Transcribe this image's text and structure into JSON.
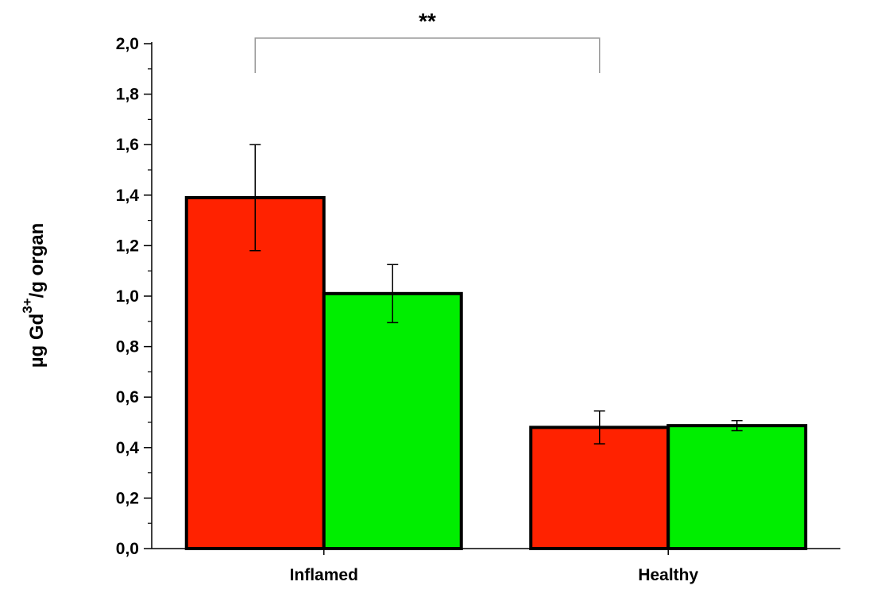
{
  "chart_data": {
    "type": "bar",
    "categories": [
      "Inflamed",
      "Healthy"
    ],
    "series": [
      {
        "color": "#ff2200",
        "values": [
          1.39,
          0.48
        ],
        "errors": [
          0.21,
          0.065
        ]
      },
      {
        "color": "#00ee00",
        "values": [
          1.01,
          0.487
        ],
        "errors": [
          0.115,
          0.02
        ]
      }
    ],
    "ylabel": {
      "prefix": "µg Gd",
      "superscript": "3+",
      "suffix": "/g organ"
    },
    "ylim": [
      0,
      2.0
    ],
    "yticks": [
      "0,0",
      "0,2",
      "0,4",
      "0,6",
      "0,8",
      "1,0",
      "1,2",
      "1,4",
      "1,6",
      "1,8",
      "2,0"
    ],
    "ytick_values": [
      0,
      0.2,
      0.4,
      0.6,
      0.8,
      1.0,
      1.2,
      1.4,
      1.6,
      1.8,
      2.0
    ],
    "significance": {
      "label": "**",
      "between": [
        "Inflamed",
        "Healthy"
      ],
      "series": 0
    },
    "grid": false,
    "legend": "none"
  }
}
